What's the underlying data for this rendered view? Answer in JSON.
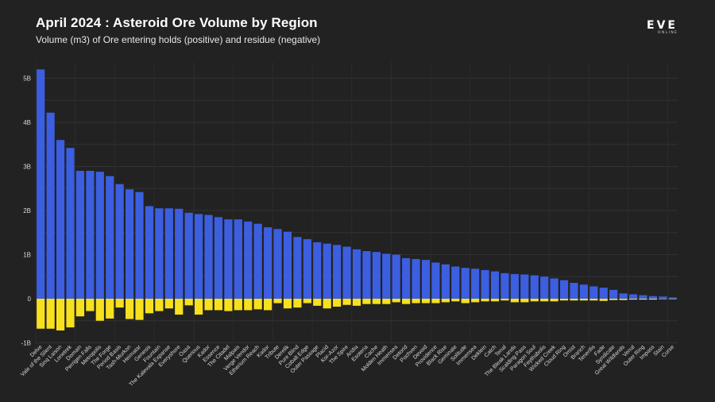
{
  "header": {
    "title": "April 2024 : Asteroid Ore Volume by Region",
    "subtitle": "Volume (m3) of Ore entering holds (positive) and residue (negative)"
  },
  "logo": {
    "main": "EVE",
    "sub": "ONLINE"
  },
  "chart_data": {
    "type": "bar",
    "title": "April 2024 : Asteroid Ore Volume by Region",
    "subtitle": "Volume (m3) of Ore entering holds (positive) and residue (negative)",
    "xlabel": "",
    "ylabel": "",
    "ylim": [
      -1.08,
      5.4
    ],
    "yticks": [
      -1,
      0,
      1,
      2,
      3,
      4,
      5
    ],
    "ytick_labels": [
      "-1B",
      "0",
      "1B",
      "2B",
      "3B",
      "4B",
      "5B"
    ],
    "units": "billion m3",
    "grid": true,
    "colors": {
      "positive": "#3c5ee0",
      "negative": "#f7e11e"
    },
    "categories": [
      "Delve",
      "Vale of the Silent",
      "Sinq Laison",
      "Lonetrek",
      "Domain",
      "Perrigen Falls",
      "Metropolis",
      "The Forge",
      "Period Basis",
      "Tash-Murkon",
      "Heimatar",
      "Genesis",
      "Fountain",
      "The Kalevala Expanse",
      "Everyshore",
      "Oasa",
      "Querious",
      "Kador",
      "Essence",
      "The Citadel",
      "Malpais",
      "Verge Vendor",
      "Etherium Reach",
      "Kador",
      "Tribute",
      "Derelik",
      "Pure Blind",
      "Cobalt Edge",
      "Outer Passage",
      "Placid",
      "Kor-Azor",
      "The Spire",
      "Aridia",
      "Esoteria",
      "Cache",
      "Molden Heath",
      "Immensea",
      "Detorid",
      "Pochven",
      "Devoid",
      "Providence",
      "Black Rise",
      "Geminate",
      "Solitude",
      "Immensea",
      "Deklein",
      "Catch",
      "Tenal",
      "The Bleak Lands",
      "Scalding Pass",
      "Paragon Soul",
      "Feythabolis",
      "Wicked Creek",
      "Cloud Ring",
      "Omist",
      "Branch",
      "Tenerifis",
      "Fade",
      "Syndicate",
      "Great Wildlands",
      "Venal",
      "Outer Ring",
      "Impass",
      "Stain",
      "Curse"
    ],
    "series": [
      {
        "name": "Ore entering holds",
        "values": [
          5.2,
          4.22,
          3.6,
          3.42,
          2.9,
          2.9,
          2.88,
          2.78,
          2.6,
          2.48,
          2.42,
          2.1,
          2.05,
          2.05,
          2.04,
          1.95,
          1.92,
          1.9,
          1.85,
          1.8,
          1.8,
          1.75,
          1.7,
          1.62,
          1.58,
          1.52,
          1.4,
          1.35,
          1.28,
          1.25,
          1.22,
          1.18,
          1.12,
          1.08,
          1.06,
          1.02,
          1.0,
          0.92,
          0.9,
          0.88,
          0.82,
          0.78,
          0.73,
          0.7,
          0.68,
          0.65,
          0.62,
          0.58,
          0.56,
          0.55,
          0.53,
          0.5,
          0.46,
          0.42,
          0.36,
          0.32,
          0.28,
          0.25,
          0.2,
          0.12,
          0.1,
          0.08,
          0.06,
          0.05,
          0.03
        ]
      },
      {
        "name": "Residue",
        "values": [
          -0.68,
          -0.68,
          -0.72,
          -0.65,
          -0.4,
          -0.28,
          -0.5,
          -0.45,
          -0.2,
          -0.46,
          -0.48,
          -0.33,
          -0.28,
          -0.22,
          -0.36,
          -0.15,
          -0.36,
          -0.26,
          -0.26,
          -0.28,
          -0.26,
          -0.26,
          -0.24,
          -0.26,
          -0.1,
          -0.22,
          -0.2,
          -0.1,
          -0.16,
          -0.22,
          -0.18,
          -0.14,
          -0.16,
          -0.12,
          -0.12,
          -0.12,
          -0.08,
          -0.12,
          -0.1,
          -0.1,
          -0.1,
          -0.08,
          -0.06,
          -0.1,
          -0.08,
          -0.06,
          -0.06,
          -0.04,
          -0.08,
          -0.08,
          -0.06,
          -0.06,
          -0.06,
          -0.04,
          -0.04,
          -0.04,
          -0.04,
          -0.05,
          -0.03,
          -0.03,
          -0.02,
          -0.02,
          -0.02,
          -0.01,
          -0.01
        ]
      }
    ]
  }
}
